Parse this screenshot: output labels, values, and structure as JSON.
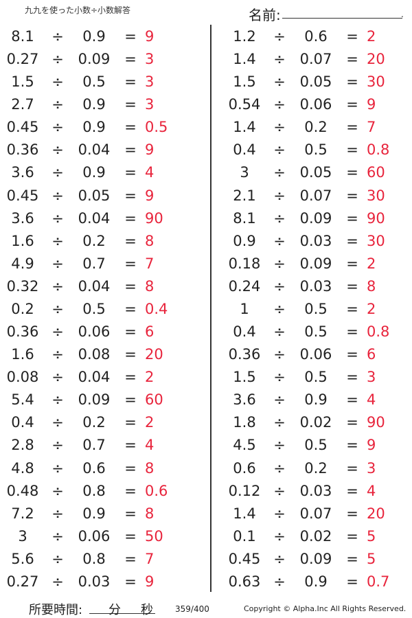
{
  "header": {
    "title": "九九を使った小数÷小数解答",
    "name_label": "名前:",
    "name_end": "."
  },
  "operator_divide": "÷",
  "operator_equals": "=",
  "colors": {
    "answer": "#e8243c",
    "text": "#222222"
  },
  "left": [
    {
      "dividend": "8.1",
      "divisor": "0.9",
      "answer": "9"
    },
    {
      "dividend": "0.27",
      "divisor": "0.09",
      "answer": "3"
    },
    {
      "dividend": "1.5",
      "divisor": "0.5",
      "answer": "3"
    },
    {
      "dividend": "2.7",
      "divisor": "0.9",
      "answer": "3"
    },
    {
      "dividend": "0.45",
      "divisor": "0.9",
      "answer": "0.5"
    },
    {
      "dividend": "0.36",
      "divisor": "0.04",
      "answer": "9"
    },
    {
      "dividend": "3.6",
      "divisor": "0.9",
      "answer": "4"
    },
    {
      "dividend": "0.45",
      "divisor": "0.05",
      "answer": "9"
    },
    {
      "dividend": "3.6",
      "divisor": "0.04",
      "answer": "90"
    },
    {
      "dividend": "1.6",
      "divisor": "0.2",
      "answer": "8"
    },
    {
      "dividend": "4.9",
      "divisor": "0.7",
      "answer": "7"
    },
    {
      "dividend": "0.32",
      "divisor": "0.04",
      "answer": "8"
    },
    {
      "dividend": "0.2",
      "divisor": "0.5",
      "answer": "0.4"
    },
    {
      "dividend": "0.36",
      "divisor": "0.06",
      "answer": "6"
    },
    {
      "dividend": "1.6",
      "divisor": "0.08",
      "answer": "20"
    },
    {
      "dividend": "0.08",
      "divisor": "0.04",
      "answer": "2"
    },
    {
      "dividend": "5.4",
      "divisor": "0.09",
      "answer": "60"
    },
    {
      "dividend": "0.4",
      "divisor": "0.2",
      "answer": "2"
    },
    {
      "dividend": "2.8",
      "divisor": "0.7",
      "answer": "4"
    },
    {
      "dividend": "4.8",
      "divisor": "0.6",
      "answer": "8"
    },
    {
      "dividend": "0.48",
      "divisor": "0.8",
      "answer": "0.6"
    },
    {
      "dividend": "7.2",
      "divisor": "0.9",
      "answer": "8"
    },
    {
      "dividend": "3",
      "divisor": "0.06",
      "answer": "50"
    },
    {
      "dividend": "5.6",
      "divisor": "0.8",
      "answer": "7"
    },
    {
      "dividend": "0.27",
      "divisor": "0.03",
      "answer": "9"
    }
  ],
  "right": [
    {
      "dividend": "1.2",
      "divisor": "0.6",
      "answer": "2"
    },
    {
      "dividend": "1.4",
      "divisor": "0.07",
      "answer": "20"
    },
    {
      "dividend": "1.5",
      "divisor": "0.05",
      "answer": "30"
    },
    {
      "dividend": "0.54",
      "divisor": "0.06",
      "answer": "9"
    },
    {
      "dividend": "1.4",
      "divisor": "0.2",
      "answer": "7"
    },
    {
      "dividend": "0.4",
      "divisor": "0.5",
      "answer": "0.8"
    },
    {
      "dividend": "3",
      "divisor": "0.05",
      "answer": "60"
    },
    {
      "dividend": "2.1",
      "divisor": "0.07",
      "answer": "30"
    },
    {
      "dividend": "8.1",
      "divisor": "0.09",
      "answer": "90"
    },
    {
      "dividend": "0.9",
      "divisor": "0.03",
      "answer": "30"
    },
    {
      "dividend": "0.18",
      "divisor": "0.09",
      "answer": "2"
    },
    {
      "dividend": "0.24",
      "divisor": "0.03",
      "answer": "8"
    },
    {
      "dividend": "1",
      "divisor": "0.5",
      "answer": "2"
    },
    {
      "dividend": "0.4",
      "divisor": "0.5",
      "answer": "0.8"
    },
    {
      "dividend": "0.36",
      "divisor": "0.06",
      "answer": "6"
    },
    {
      "dividend": "1.5",
      "divisor": "0.5",
      "answer": "3"
    },
    {
      "dividend": "3.6",
      "divisor": "0.9",
      "answer": "4"
    },
    {
      "dividend": "1.8",
      "divisor": "0.02",
      "answer": "90"
    },
    {
      "dividend": "4.5",
      "divisor": "0.5",
      "answer": "9"
    },
    {
      "dividend": "0.6",
      "divisor": "0.2",
      "answer": "3"
    },
    {
      "dividend": "0.12",
      "divisor": "0.03",
      "answer": "4"
    },
    {
      "dividend": "1.4",
      "divisor": "0.07",
      "answer": "20"
    },
    {
      "dividend": "0.1",
      "divisor": "0.02",
      "answer": "5"
    },
    {
      "dividend": "0.45",
      "divisor": "0.09",
      "answer": "5"
    },
    {
      "dividend": "0.63",
      "divisor": "0.9",
      "answer": "0.7"
    }
  ],
  "footer": {
    "time_label": "所要時間:",
    "minutes": "分",
    "seconds": "秒",
    "page": "359/400",
    "copyright": "Copyright © Alpha.Inc All Rights Reserved."
  }
}
